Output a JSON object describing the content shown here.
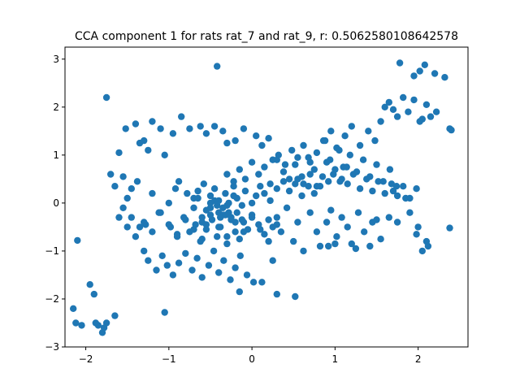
{
  "chart_data": {
    "type": "scatter",
    "title": "CCA component 1 for rats rat_7 and rat_9, r: 0.5062580108642578",
    "xlabel": "",
    "ylabel": "",
    "xlim": [
      -2.25,
      2.6
    ],
    "ylim": [
      -3.0,
      3.25
    ],
    "xticks": [
      -2,
      -1,
      0,
      1,
      2
    ],
    "yticks": [
      -3,
      -2,
      -1,
      0,
      1,
      2,
      3
    ],
    "xtick_labels": [
      "−2",
      "−1",
      "0",
      "1",
      "2"
    ],
    "ytick_labels": [
      "−3",
      "−2",
      "−1",
      "0",
      "1",
      "2",
      "3"
    ],
    "grid": false,
    "marker_color": "#1f77b4",
    "series": [
      {
        "x": [
          -2.15,
          -2.12,
          -2.05,
          -2.1,
          -1.95,
          -1.85,
          -1.88,
          -1.8,
          -1.75,
          -1.9,
          -1.65,
          -1.78,
          -0.42,
          -1.75,
          1.78,
          2.02,
          2.08,
          2.2,
          1.95,
          2.32,
          2.38,
          2.4,
          2.38,
          2.05,
          -0.62,
          -0.95,
          -1.1,
          -1.2,
          -1.4,
          -1.52,
          -1.6,
          -1.35,
          -1.3,
          -1.25,
          -1.05,
          -0.85,
          -0.75,
          -0.55,
          -0.45,
          -0.35,
          -0.3,
          -0.2,
          -0.1,
          0.05,
          0.12,
          0.2,
          -1.55,
          -1.7,
          -1.65,
          -1.45,
          -1.38,
          -1.5,
          -1.55,
          -1.45,
          -1.35,
          -1.28,
          -1.12,
          -1.2,
          -1.0,
          -0.92,
          -0.88,
          -0.78,
          -0.7,
          -0.65,
          -0.58,
          -0.5,
          -0.45,
          -0.4,
          -0.35,
          -0.32,
          -0.28,
          -0.22,
          -0.18,
          -0.12,
          -0.08,
          0.0,
          0.05,
          0.1,
          0.15,
          0.22,
          0.3,
          0.38,
          0.45,
          0.52,
          0.6,
          0.68,
          0.75,
          -0.98,
          -0.9,
          -0.82,
          -0.75,
          -0.68,
          -0.62,
          -0.55,
          -0.48,
          -0.42,
          -0.38,
          -0.3,
          -0.25,
          -0.2,
          -0.15,
          -0.1,
          -0.05,
          0.0,
          0.08,
          0.15,
          0.2,
          0.25,
          -1.3,
          -1.25,
          -1.15,
          -1.08,
          -1.02,
          -0.95,
          -0.88,
          -0.8,
          -0.72,
          -0.66,
          -0.6,
          -0.52,
          -0.46,
          -0.4,
          -0.34,
          -0.26,
          -0.2,
          -0.14,
          -0.06,
          0.02,
          0.3,
          0.35,
          0.42,
          0.5,
          0.55,
          0.62,
          0.7,
          0.78,
          0.82,
          0.9,
          0.95,
          1.02,
          1.08,
          1.15,
          1.2,
          1.28,
          1.35,
          1.42,
          1.5,
          1.55,
          1.6,
          1.65,
          1.7,
          1.75,
          1.82,
          1.88,
          1.95,
          2.02,
          2.1,
          2.15,
          2.22,
          0.88,
          0.95,
          1.05,
          1.12,
          1.2,
          1.3,
          1.4,
          1.48,
          1.55,
          0.55,
          0.62,
          0.7,
          0.78,
          0.85,
          0.92,
          1.0,
          1.08,
          1.15,
          1.22,
          1.3,
          1.38,
          1.45,
          1.52,
          1.6,
          1.68,
          1.75,
          1.82,
          1.9,
          1.98,
          0.25,
          0.32,
          0.4,
          0.48,
          0.55,
          0.62,
          0.7,
          0.78,
          0.86,
          0.94,
          1.02,
          1.1,
          1.18,
          1.26,
          1.34,
          1.42,
          1.5,
          1.58,
          1.66,
          1.74,
          -0.3,
          -0.22,
          -0.15,
          -0.08,
          0.0,
          0.08,
          0.15,
          0.22,
          0.3,
          0.38,
          0.45,
          0.52,
          0.6,
          0.68,
          0.75,
          0.82,
          0.9,
          0.98,
          1.06,
          1.14,
          -1.6,
          -1.5,
          -1.4,
          -1.3,
          -1.2,
          -1.1,
          -1.0,
          -0.9,
          -0.8,
          -0.7,
          -0.6,
          -0.5,
          -0.4,
          -0.3,
          -0.2,
          -0.1,
          0.0,
          0.1,
          0.2,
          0.3,
          -0.7,
          -0.6,
          -0.5,
          -0.4,
          -0.3,
          -0.6,
          -0.55,
          -0.45,
          -0.35,
          -0.25,
          -0.65,
          -0.5,
          -0.38,
          -0.28,
          -0.18,
          -0.55,
          -0.42,
          -0.32,
          -0.22,
          -0.12,
          1.9,
          2.0,
          2.1,
          1.85,
          1.75,
          2.05,
          1.98,
          1.7,
          1.65,
          2.12,
          0.3,
          0.52,
          -1.05,
          0.92,
          1.0,
          0.12,
          0.25,
          -0.15,
          1.25,
          1.45
        ],
        "y": [
          -2.2,
          -2.5,
          -2.55,
          -0.78,
          -1.7,
          -2.55,
          -2.5,
          -2.7,
          -2.5,
          -1.9,
          -2.35,
          -2.6,
          2.85,
          2.2,
          2.92,
          2.75,
          2.88,
          2.7,
          2.65,
          2.62,
          1.55,
          1.52,
          -0.52,
          1.75,
          1.6,
          1.45,
          1.55,
          1.7,
          1.65,
          1.55,
          1.05,
          1.25,
          1.3,
          1.1,
          1.0,
          1.8,
          1.55,
          1.45,
          1.6,
          1.5,
          1.25,
          1.3,
          1.55,
          1.4,
          1.2,
          1.35,
          0.55,
          0.6,
          0.35,
          0.3,
          0.45,
          0.1,
          -0.1,
          -0.3,
          -0.5,
          -0.45,
          -0.2,
          0.2,
          0.0,
          0.3,
          0.45,
          0.2,
          0.1,
          0.25,
          0.4,
          0.15,
          0.3,
          0.05,
          -0.1,
          0.2,
          -0.2,
          0.35,
          0.1,
          -0.05,
          0.25,
          0.0,
          0.15,
          0.35,
          0.2,
          0.05,
          0.3,
          0.45,
          0.25,
          0.4,
          0.15,
          0.35,
          0.2,
          -0.5,
          -0.7,
          -0.3,
          -0.6,
          -0.45,
          -0.8,
          -0.55,
          -0.35,
          -0.7,
          -0.5,
          -0.85,
          -0.3,
          -0.6,
          -0.75,
          -0.4,
          -0.55,
          -0.25,
          -0.45,
          -0.65,
          -0.35,
          -0.5,
          -1.0,
          -1.2,
          -1.4,
          -1.1,
          -1.3,
          -1.5,
          -1.25,
          -1.05,
          -1.4,
          -1.15,
          -1.55,
          -1.3,
          -1.0,
          -1.45,
          -1.2,
          -1.6,
          -1.35,
          -1.1,
          -1.5,
          -1.65,
          -0.3,
          -0.6,
          -0.1,
          -0.8,
          -0.4,
          -1.0,
          -0.2,
          -0.6,
          -0.9,
          -0.4,
          -0.15,
          -0.7,
          -0.3,
          -0.5,
          -0.85,
          -0.2,
          -0.6,
          -0.9,
          -0.35,
          -0.75,
          2.0,
          2.1,
          1.95,
          1.8,
          2.2,
          1.9,
          2.15,
          1.7,
          2.05,
          1.8,
          1.9,
          1.3,
          1.5,
          1.1,
          1.4,
          1.6,
          1.2,
          1.5,
          1.3,
          1.7,
          0.5,
          0.4,
          0.6,
          0.35,
          0.55,
          0.45,
          0.7,
          0.5,
          0.4,
          0.6,
          0.3,
          0.5,
          0.25,
          0.45,
          0.2,
          0.4,
          0.15,
          0.35,
          0.1,
          0.3,
          0.9,
          1.0,
          0.8,
          1.1,
          0.95,
          1.2,
          0.85,
          1.05,
          1.3,
          0.9,
          1.15,
          0.75,
          1.0,
          0.65,
          0.9,
          0.55,
          0.8,
          0.45,
          0.7,
          0.35,
          0.6,
          0.45,
          0.7,
          0.5,
          0.85,
          0.6,
          0.75,
          0.4,
          0.9,
          0.65,
          0.5,
          0.8,
          0.55,
          0.95,
          0.7,
          0.35,
          0.85,
          0.6,
          0.45,
          0.75,
          -0.3,
          -0.5,
          -0.7,
          -0.4,
          -0.6,
          -0.2,
          -0.45,
          -0.65,
          -0.35,
          -0.55,
          -0.75,
          -0.25,
          -0.5,
          -0.7,
          -0.4,
          -0.6,
          -0.3,
          -0.55,
          -0.8,
          -0.45,
          -0.1,
          -0.3,
          0.0,
          -0.2,
          -0.05,
          -0.4,
          -0.15,
          0.05,
          -0.25,
          -0.35,
          0.1,
          -0.1,
          -0.3,
          0.0,
          -0.2,
          -0.45,
          -0.05,
          -0.25,
          0.15,
          -0.35,
          -0.2,
          -0.5,
          -0.8,
          0.1,
          -0.4,
          -1.0,
          -0.65,
          0.25,
          -0.3,
          -0.9,
          -1.9,
          -1.95,
          -2.28,
          -0.9,
          -0.85,
          -1.65,
          -1.2,
          -1.85,
          -0.95,
          -0.4
        ]
      }
    ]
  }
}
